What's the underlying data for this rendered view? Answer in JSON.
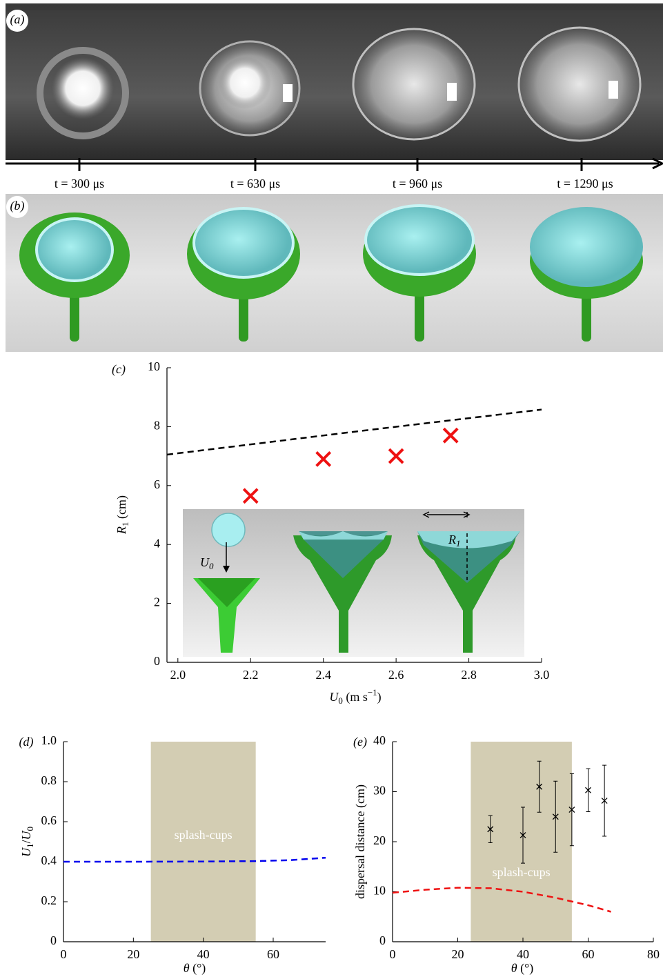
{
  "panel_a": {
    "label": "(a)",
    "times": [
      "t = 300 μs",
      "t = 630 μs",
      "t = 960 μs",
      "t = 1290 μs"
    ]
  },
  "panel_b": {
    "label": "(b)"
  },
  "chart_data": [
    {
      "type": "scatter",
      "label": "(c)",
      "xlabel": {
        "symbol": "U",
        "sub": "0",
        "unit": " (m s",
        "sup": "−1",
        "end": ")"
      },
      "ylabel": {
        "symbol": "R",
        "sub": "1",
        "unit": " (cm)"
      },
      "xlim": [
        1.97,
        3.0
      ],
      "xticks": [
        {
          "value": 2,
          "label": "2.0"
        },
        2.2,
        2.4,
        2.6,
        2.8,
        {
          "value": 3,
          "label": "3.0"
        }
      ],
      "ylim": [
        0,
        10
      ],
      "yticks": [
        0,
        2,
        4,
        6,
        8,
        10
      ],
      "series": [
        {
          "marker": "x",
          "color": "#ee1111",
          "x": [
            2.2,
            2.4,
            2.6,
            2.75
          ],
          "values": [
            5.65,
            6.9,
            7.0,
            7.7
          ]
        },
        {
          "line": "dashed",
          "color": "#000000",
          "x": [
            1.97,
            2.5,
            3.0
          ],
          "values": [
            7.05,
            7.85,
            8.58
          ]
        }
      ],
      "inset": {
        "u": "U",
        "u_sub": "0",
        "r": "R",
        "r_sub": "1"
      }
    },
    {
      "type": "line",
      "label": "(d)",
      "xlabel": {
        "symbol": "θ",
        "unit": " (°)"
      },
      "ylabel": {
        "symbol": "U",
        "sub": "1",
        "slash": "/",
        "symbol2": "U",
        "sub2": "0"
      },
      "xlim": [
        0,
        75
      ],
      "xticks": [
        0,
        20,
        40,
        60
      ],
      "ylim": [
        0,
        1
      ],
      "yticks": [
        0,
        0.2,
        0.4,
        0.6,
        0.8,
        {
          "value": 1,
          "label": "1.0"
        }
      ],
      "band": {
        "x": [
          25,
          55
        ],
        "label": "splash-cups",
        "color": "#d3cdb3"
      },
      "series": [
        {
          "line": "dashed",
          "color": "#0000ee",
          "x": [
            0,
            20,
            40,
            55,
            65,
            75
          ],
          "values": [
            0.4,
            0.4,
            0.401,
            0.403,
            0.408,
            0.42
          ]
        }
      ]
    },
    {
      "type": "errorbar",
      "label": "(e)",
      "xlabel": {
        "symbol": "θ",
        "unit": " (°)"
      },
      "ylabel": {
        "text": "dispersal distance (cm)"
      },
      "xlim": [
        0,
        80
      ],
      "xticks": [
        0,
        20,
        40,
        60,
        80
      ],
      "ylim": [
        0,
        40
      ],
      "yticks": [
        0,
        10,
        20,
        30,
        40
      ],
      "band": {
        "x": [
          24,
          55
        ],
        "label": "splash-cups",
        "color": "#d3cdb3"
      },
      "series": [
        {
          "marker": "x",
          "color": "#000000",
          "x": [
            30,
            40,
            45,
            50,
            55,
            60,
            65
          ],
          "values": [
            22.5,
            21.3,
            31,
            25,
            26.4,
            30.3,
            28.2
          ],
          "errors": [
            2.7,
            5.6,
            5.1,
            7.1,
            7.2,
            4.3,
            7.1
          ]
        },
        {
          "line": "dashed",
          "color": "#ee1111",
          "x": [
            0,
            10,
            20,
            30,
            40,
            50,
            60,
            67
          ],
          "values": [
            9.8,
            10.4,
            10.8,
            10.7,
            10.0,
            8.8,
            7.3,
            6.0
          ]
        }
      ]
    }
  ]
}
